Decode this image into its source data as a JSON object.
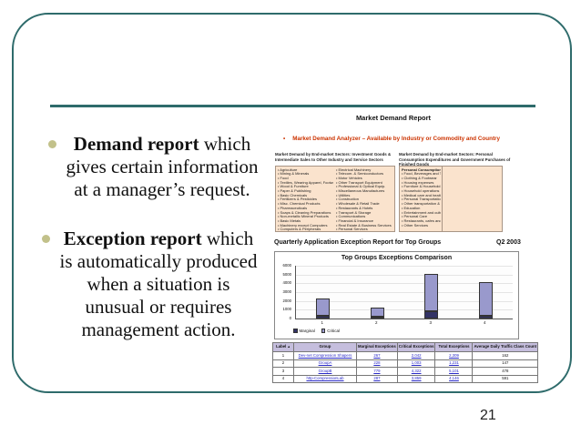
{
  "page_number": "21",
  "colors": {
    "frame_teal": "#2e6b6b",
    "bullet_olive": "#c2c18a",
    "analyzer_red": "#cc3300",
    "box_peach": "#fae3cd",
    "table_header_lavender": "#c5bedd",
    "marginal_navy": "#333366",
    "critical_purple": "#9999cc",
    "link_blue": "#2a2ac8"
  },
  "bullets": [
    {
      "bold": "Demand report",
      "lines": [
        "Demand report which",
        "gives certain information",
        "at a manager’s request."
      ]
    },
    {
      "bold": "Exception report",
      "lines": [
        "Exception report which",
        "is automatically produced",
        "when a situation is",
        "unusual or requires",
        "management action."
      ]
    }
  ],
  "report": {
    "title": "Market Demand Report",
    "analyzer_bullet": "•",
    "analyzer_line": "Market Demand Analyzer – Available by Industry or Commodity and Country",
    "sections": {
      "left": {
        "heading": "Market Demand by End-market Sectors: Investment Goods & Intermediate Sales to Other Industry and Service Sectors",
        "columns": [
          [
            "Agriculture",
            "Mining & Minerals",
            "Food",
            "Textiles, Wearing Apparel, Footwear",
            "Wood & Furniture",
            "Paper & Publishing",
            "Basic Chemicals",
            "Fertilizers & Pesticides",
            "Misc. Chemical Products",
            "Pharmaceuticals",
            "Soaps & Cleaning Preparations",
            "Non-metallic Mineral Products",
            "Basic Metals",
            "Machinery except Computers",
            "Computers & Peripherals"
          ],
          [
            "Electrical Machinery",
            "Telecom. & Semiconductors",
            "Motor Vehicles",
            "Other Transport Equipment",
            "Professional & Optical Equip.",
            "Miscellaneous Manufactures",
            "Utilities",
            "Construction",
            "Wholesale & Retail Trade",
            "Restaurants & Hotels",
            "Transport & Storage",
            "Communications",
            "Financial & Insurance",
            "Real Estate & Business Services",
            "Personal Services"
          ]
        ]
      },
      "right": {
        "heading": "Market Demand by End-market Sectors: Personal Consumption Expenditures and Government Purchases of Finished Goods",
        "subheading": "Personal Consumption Expenditures:",
        "items": [
          "Food, Beverages and Tobacco",
          "Clothing & Footwear",
          "Housing expenses",
          "Furniture & Household equipment",
          "Household operations",
          "Medical care and health expenses",
          "Personal Transportation",
          "Other transportation & communication",
          "Education",
          "Entertainment and cultural",
          "Personal Care",
          "Restaurants, cafes and hotels",
          "Other Services"
        ]
      }
    },
    "exception_header": "Quarterly Application Exception Report for Top Groups",
    "quarter_label": "Q2 2003"
  },
  "chart_data": {
    "type": "bar",
    "stacked": true,
    "title": "Top Groups Exceptions Comparison",
    "categories": [
      "1",
      "2",
      "3",
      "4"
    ],
    "series": [
      {
        "name": "Marginal",
        "color": "#333366",
        "values": [
          267,
          228,
          779,
          287
        ]
      },
      {
        "name": "Critical",
        "color": "#9999cc",
        "values": [
          2042,
          1003,
          4322,
          3859
        ]
      }
    ],
    "totals": [
      2309,
      1231,
      5101,
      4146
    ],
    "ylim": [
      0,
      6000
    ],
    "yticks": [
      0,
      1000,
      2000,
      3000,
      4000,
      5000,
      6000
    ],
    "xlabel": "",
    "ylabel": "",
    "grid": true,
    "legend_position": "bottom-left"
  },
  "table": {
    "headers": [
      "Label",
      "Group",
      "Marginal Exceptions",
      "Critical Exceptions",
      "Total Exceptions",
      "Average Daily Traffic Class Count"
    ],
    "sort_icon": "▲",
    "link_columns": [
      1,
      2,
      3,
      4
    ],
    "rows": [
      [
        "1",
        "Dev-net Compression Shapers",
        "267",
        "2,042",
        "2,309",
        "162"
      ],
      [
        "2",
        "GroupA",
        "228",
        "1,003",
        "1,231",
        "147"
      ],
      [
        "3",
        "GroupB",
        "779",
        "4,322",
        "5,101",
        "478"
      ],
      [
        "4",
        "http-CompressionLab",
        "287",
        "3,859",
        "4,146",
        "591"
      ]
    ]
  }
}
